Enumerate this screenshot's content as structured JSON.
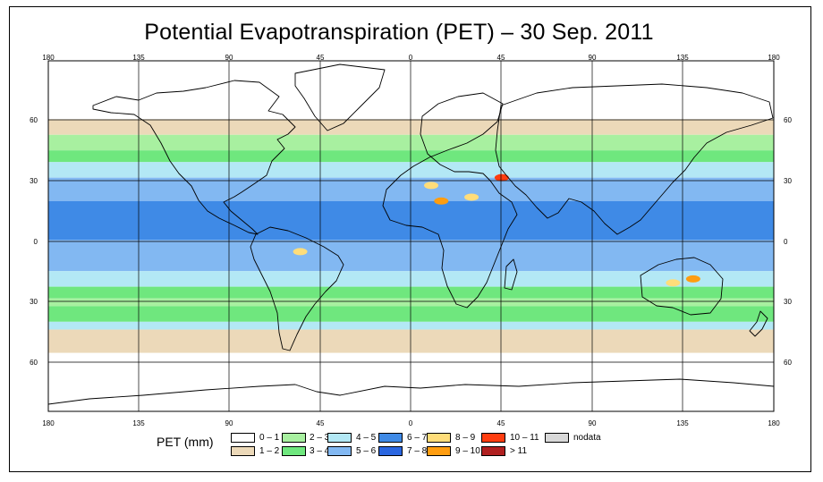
{
  "title": "Potential Evapotranspiration (PET) – 30 Sep. 2011",
  "x_axis_top": [
    "180",
    "135",
    "90",
    "45",
    "0",
    "45",
    "90",
    "135",
    "180"
  ],
  "x_axis_bottom": [
    "180",
    "135",
    "90",
    "45",
    "0",
    "45",
    "90",
    "135",
    "180"
  ],
  "y_axis_left": [
    "60",
    "30",
    "0",
    "30",
    "60"
  ],
  "y_axis_right": [
    "60",
    "30",
    "0",
    "30",
    "60"
  ],
  "legend": {
    "label": "PET (mm)",
    "classes": [
      {
        "label": "0 – 1",
        "color": "#ffffff"
      },
      {
        "label": "1 – 2",
        "color": "#ecd9b9"
      },
      {
        "label": "2 – 3",
        "color": "#a8f0a0"
      },
      {
        "label": "3 – 4",
        "color": "#6fe77e"
      },
      {
        "label": "4 – 5",
        "color": "#b3e8f5"
      },
      {
        "label": "5 – 6",
        "color": "#82b8f2"
      },
      {
        "label": "6 – 7",
        "color": "#3f8ae6"
      },
      {
        "label": "7 – 8",
        "color": "#2a66e0"
      },
      {
        "label": "8 – 9",
        "color": "#ffdd7a"
      },
      {
        "label": "9 – 10",
        "color": "#ff9d10"
      },
      {
        "label": "10 – 11",
        "color": "#ff3d10"
      },
      {
        "label": "> 11",
        "color": "#b02020"
      },
      {
        "label": "nodata",
        "color": "#d8d8d8"
      }
    ]
  },
  "latitude_bands": [
    {
      "lat_from": 90,
      "lat_to": 70,
      "class": "0 – 1"
    },
    {
      "lat_from": 70,
      "lat_to": 60,
      "class": "0 – 1"
    },
    {
      "lat_from": 60,
      "lat_to": 52,
      "class": "1 – 2"
    },
    {
      "lat_from": 52,
      "lat_to": 44,
      "class": "2 – 3"
    },
    {
      "lat_from": 44,
      "lat_to": 38,
      "class": "3 – 4"
    },
    {
      "lat_from": 38,
      "lat_to": 30,
      "class": "4 – 5"
    },
    {
      "lat_from": 30,
      "lat_to": 18,
      "class": "5 – 6"
    },
    {
      "lat_from": 18,
      "lat_to": -2,
      "class": "6 – 7"
    },
    {
      "lat_from": -2,
      "lat_to": -18,
      "class": "5 – 6"
    },
    {
      "lat_from": -18,
      "lat_to": -26,
      "class": "4 – 5"
    },
    {
      "lat_from": -26,
      "lat_to": -32,
      "class": "3 – 4"
    },
    {
      "lat_from": -32,
      "lat_to": -36,
      "class": "2 – 3"
    },
    {
      "lat_from": -36,
      "lat_to": -44,
      "class": "3 – 4"
    },
    {
      "lat_from": -44,
      "lat_to": -48,
      "class": "4 – 5"
    },
    {
      "lat_from": -48,
      "lat_to": -60,
      "class": "1 – 2"
    },
    {
      "lat_from": -60,
      "lat_to": -90,
      "class": "0 – 1"
    }
  ],
  "hotspots": [
    {
      "lon": 45,
      "lat": 30,
      "class": "10 – 11"
    },
    {
      "lon": 10,
      "lat": 26,
      "class": "8 – 9"
    },
    {
      "lon": 15,
      "lat": 18,
      "class": "9 – 10"
    },
    {
      "lon": 30,
      "lat": 20,
      "class": "8 – 9"
    },
    {
      "lon": 130,
      "lat": -24,
      "class": "8 – 9"
    },
    {
      "lon": 140,
      "lat": -22,
      "class": "9 – 10"
    },
    {
      "lon": -55,
      "lat": -8,
      "class": "8 – 9"
    }
  ]
}
